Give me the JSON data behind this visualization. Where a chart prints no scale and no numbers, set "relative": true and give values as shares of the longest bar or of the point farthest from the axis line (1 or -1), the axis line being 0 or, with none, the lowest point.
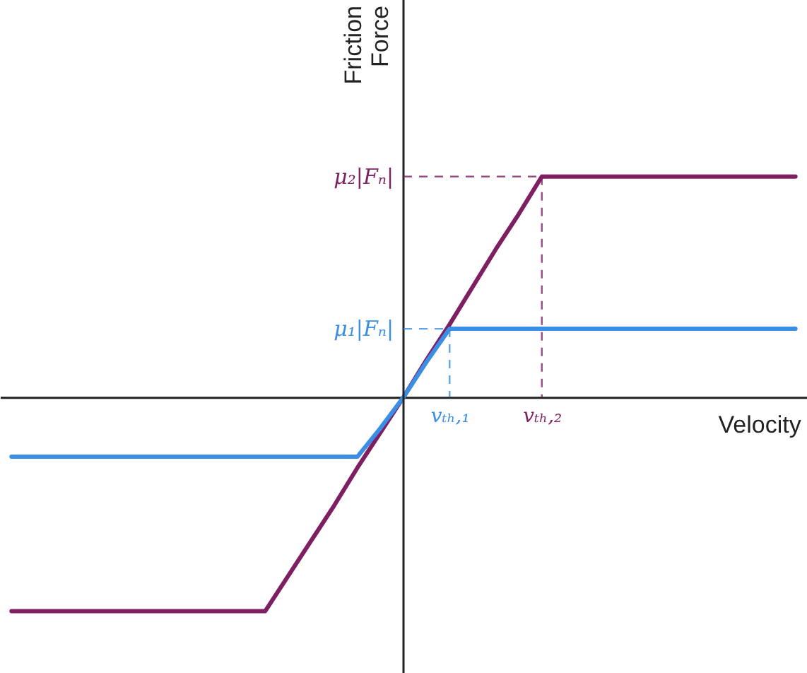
{
  "chart_data": {
    "type": "line",
    "relative": true,
    "xlabel": "Velocity",
    "ylabel": "Friction Force",
    "categories": [
      null,
      null,
      null,
      null,
      null,
      null,
      null,
      null,
      null,
      null,
      null,
      null,
      null,
      null,
      null,
      null,
      null,
      null,
      null,
      "vₜₕ,₁",
      null,
      null,
      null,
      "vₜₕ,₂",
      null,
      null,
      null,
      null,
      null,
      null,
      null,
      null,
      null,
      null,
      null
    ],
    "marker": "none",
    "line_style": "solid",
    "series": [
      {
        "color": "#7e1f62",
        "values": [
          -0.97,
          -0.97,
          -0.97,
          -0.97,
          -0.97,
          -0.97,
          -0.97,
          -0.97,
          -0.97,
          -0.97,
          -0.97,
          -0.97,
          -0.81,
          -0.65,
          -0.49,
          -0.32,
          -0.16,
          0,
          0.17,
          0.33,
          0.5,
          0.67,
          0.83,
          1,
          1,
          1,
          1,
          1,
          1,
          1,
          1,
          1,
          1,
          1,
          1
        ]
      },
      {
        "color": "#3a8ee6",
        "values": [
          -0.27,
          -0.27,
          -0.27,
          -0.27,
          -0.27,
          -0.27,
          -0.27,
          -0.27,
          -0.27,
          -0.27,
          -0.27,
          -0.27,
          -0.27,
          -0.27,
          -0.27,
          -0.27,
          -0.14,
          0,
          0.16,
          0.31,
          0.31,
          0.31,
          0.31,
          0.31,
          0.31,
          0.31,
          0.31,
          0.31,
          0.31,
          0.31,
          0.31,
          0.31,
          0.31,
          0.31,
          0.31
        ]
      }
    ],
    "annotations": [
      "μ₂|Fₙ|",
      "μ₁|Fₙ|"
    ]
  }
}
